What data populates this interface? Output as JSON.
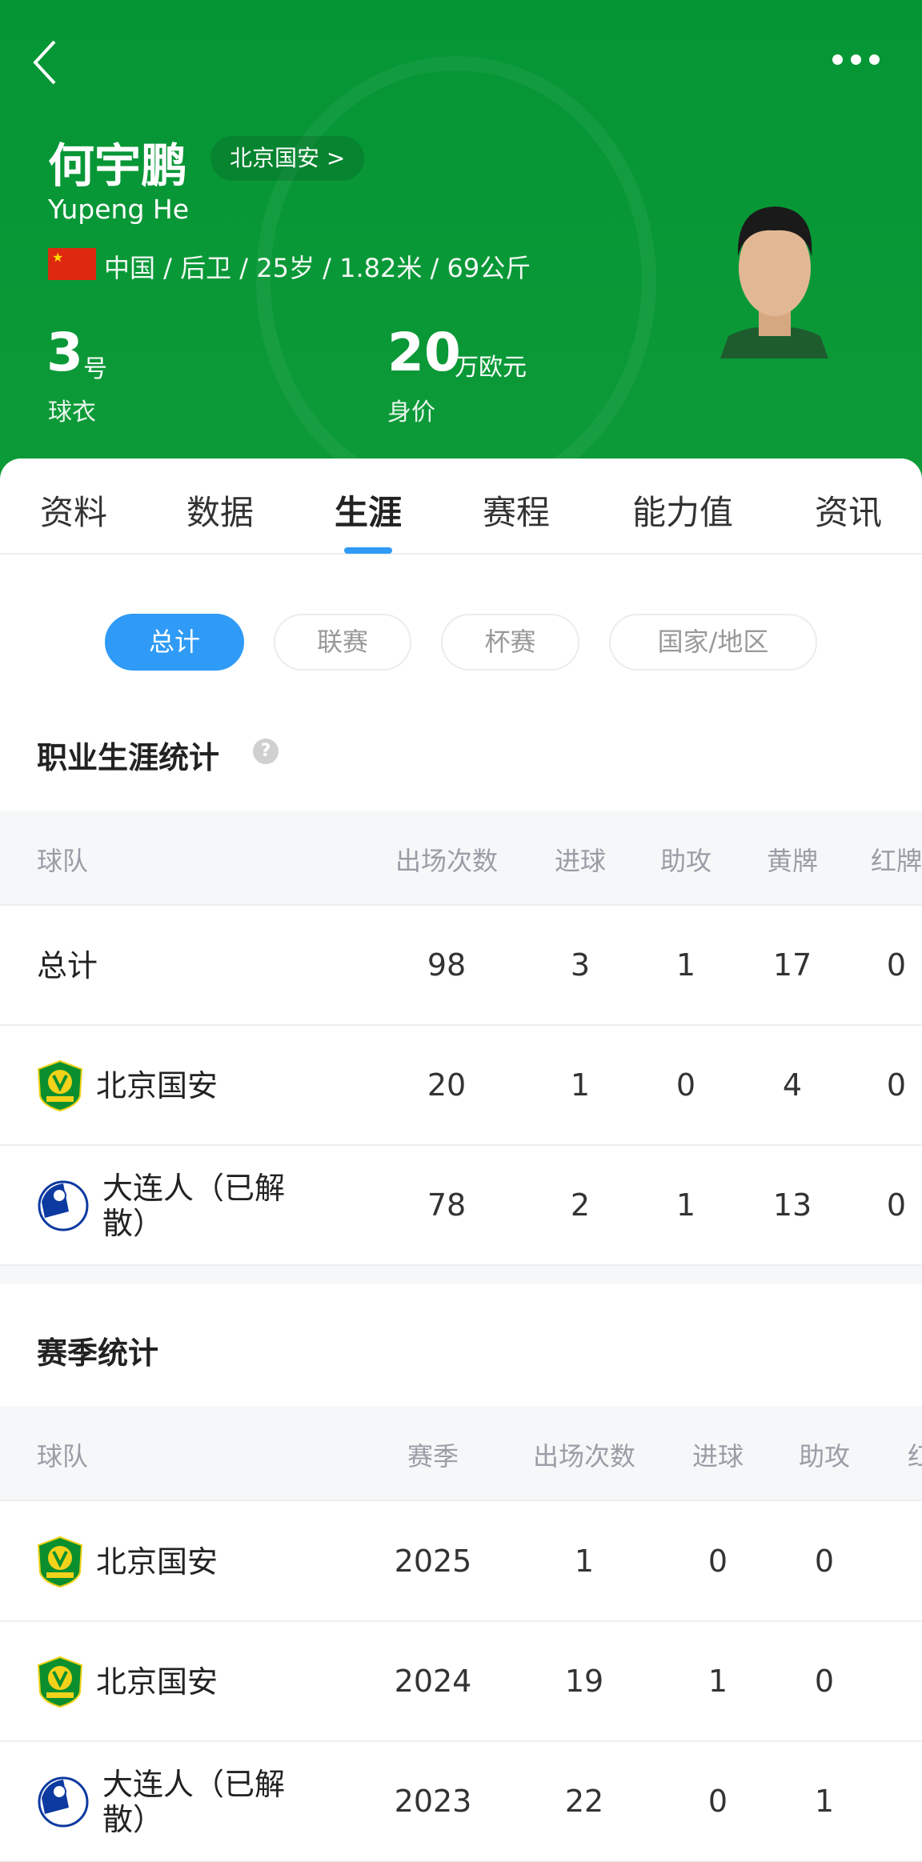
{
  "header": {
    "player_name": "何宇鹏",
    "club_badge": "北京国安 >",
    "english_name": "Yupeng He",
    "info": "中国 / 后卫 / 25岁 / 1.82米 / 69公斤",
    "jersey_number": "3",
    "jersey_unit": "号",
    "jersey_label": "球衣",
    "value_number": "20",
    "value_unit": "万欧元",
    "value_label": "身价",
    "brand_color": "#049535",
    "icons": {
      "back": "chevron-left-icon",
      "more": "more-dots-icon",
      "flag": "china-flag-icon"
    }
  },
  "tabs": [
    {
      "label": "资料"
    },
    {
      "label": "数据"
    },
    {
      "label": "生涯",
      "active": true
    },
    {
      "label": "赛程"
    },
    {
      "label": "能力值"
    },
    {
      "label": "资讯"
    }
  ],
  "filters": [
    {
      "label": "总计",
      "active": true
    },
    {
      "label": "联赛"
    },
    {
      "label": "杯赛"
    },
    {
      "label": "国家/地区"
    }
  ],
  "career": {
    "title": "职业生涯统计",
    "columns": [
      "球队",
      "出场次数",
      "进球",
      "助攻",
      "黄牌",
      "红牌"
    ],
    "rows": [
      {
        "team": "总计",
        "apps": "98",
        "goals": "3",
        "assists": "1",
        "yellow": "17",
        "red": "0"
      },
      {
        "team": "北京国安",
        "apps": "20",
        "goals": "1",
        "assists": "0",
        "yellow": "4",
        "red": "0",
        "logo": "guoan"
      },
      {
        "team": "大连人（已解散）",
        "apps": "78",
        "goals": "2",
        "assists": "1",
        "yellow": "13",
        "red": "0",
        "logo": "dalian"
      }
    ]
  },
  "season": {
    "title": "赛季统计",
    "columns": [
      "球队",
      "赛季",
      "出场次数",
      "进球",
      "助攻",
      "红"
    ],
    "rows": [
      {
        "team": "北京国安",
        "season": "2025",
        "apps": "1",
        "goals": "0",
        "assists": "0",
        "logo": "guoan"
      },
      {
        "team": "北京国安",
        "season": "2024",
        "apps": "19",
        "goals": "1",
        "assists": "0",
        "logo": "guoan"
      },
      {
        "team": "大连人（已解散）",
        "season": "2023",
        "apps": "22",
        "goals": "0",
        "assists": "1",
        "logo": "dalian"
      }
    ]
  },
  "accent_color": "#2f9bf6"
}
